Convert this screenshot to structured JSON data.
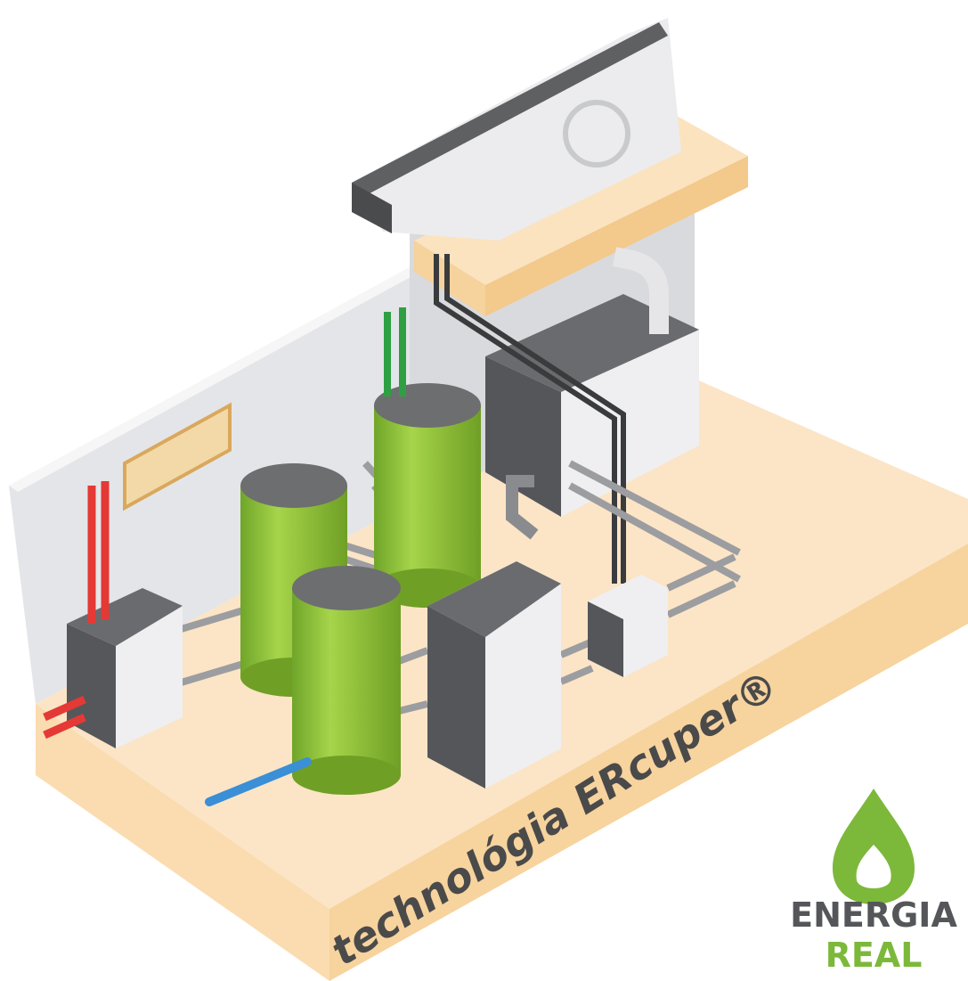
{
  "label": "technológia ERcuper®",
  "logo": {
    "line1": "ENERGIA",
    "line2": "REAL"
  }
}
